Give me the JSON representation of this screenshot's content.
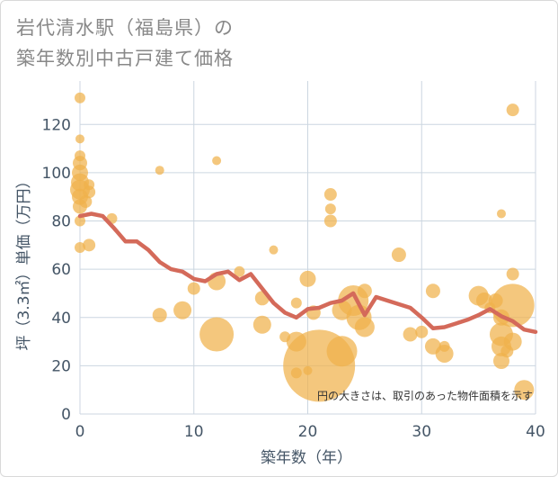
{
  "title_line1": "岩代清水駅（福島県）の",
  "title_line2": "築年数別中古戸建て価格",
  "colors": {
    "bubble": "#f0b24b",
    "line": "#d46a5a",
    "grid": "#ccd6e0",
    "text": "#445566"
  },
  "chart_data": {
    "type": "scatter",
    "title": "岩代清水駅（福島県）の築年数別中古戸建て価格",
    "xlabel": "築年数（年）",
    "ylabel": "坪（3.3㎡）単価（万円）",
    "xlim": [
      0,
      40
    ],
    "ylim": [
      0,
      138
    ],
    "xticks": [
      0,
      10,
      20,
      30,
      40
    ],
    "yticks": [
      0,
      20,
      40,
      60,
      80,
      100,
      120
    ],
    "grid": true,
    "note": "円の大きさは、取引のあった物件面積を示す",
    "bubbles": [
      {
        "x": 0,
        "y": 131,
        "s": 6
      },
      {
        "x": 0,
        "y": 114,
        "s": 5
      },
      {
        "x": 0,
        "y": 107,
        "s": 6
      },
      {
        "x": 0,
        "y": 104,
        "s": 8
      },
      {
        "x": 0,
        "y": 100,
        "s": 9
      },
      {
        "x": 0,
        "y": 96,
        "s": 10
      },
      {
        "x": 0,
        "y": 93,
        "s": 11
      },
      {
        "x": 0,
        "y": 90,
        "s": 9
      },
      {
        "x": 0,
        "y": 86,
        "s": 8
      },
      {
        "x": 0,
        "y": 80,
        "s": 6
      },
      {
        "x": 0,
        "y": 69,
        "s": 6
      },
      {
        "x": 0.5,
        "y": 88,
        "s": 7
      },
      {
        "x": 0.8,
        "y": 95,
        "s": 6
      },
      {
        "x": 0.8,
        "y": 92,
        "s": 7
      },
      {
        "x": 0.8,
        "y": 70,
        "s": 7
      },
      {
        "x": 2.8,
        "y": 81,
        "s": 6
      },
      {
        "x": 7,
        "y": 101,
        "s": 5
      },
      {
        "x": 7,
        "y": 41,
        "s": 8
      },
      {
        "x": 9,
        "y": 43,
        "s": 10
      },
      {
        "x": 10,
        "y": 52,
        "s": 7
      },
      {
        "x": 12,
        "y": 105,
        "s": 5
      },
      {
        "x": 12,
        "y": 55,
        "s": 10
      },
      {
        "x": 12,
        "y": 33,
        "s": 19
      },
      {
        "x": 14,
        "y": 59,
        "s": 6
      },
      {
        "x": 16,
        "y": 48,
        "s": 8
      },
      {
        "x": 16,
        "y": 37,
        "s": 10
      },
      {
        "x": 17,
        "y": 68,
        "s": 5
      },
      {
        "x": 18,
        "y": 32,
        "s": 6
      },
      {
        "x": 19,
        "y": 46,
        "s": 6
      },
      {
        "x": 19,
        "y": 30,
        "s": 11
      },
      {
        "x": 19,
        "y": 17,
        "s": 6
      },
      {
        "x": 20,
        "y": 56,
        "s": 9
      },
      {
        "x": 20,
        "y": 18,
        "s": 5
      },
      {
        "x": 20.5,
        "y": 42,
        "s": 8
      },
      {
        "x": 21,
        "y": 20,
        "s": 40
      },
      {
        "x": 22,
        "y": 91,
        "s": 7
      },
      {
        "x": 22,
        "y": 85,
        "s": 6
      },
      {
        "x": 22,
        "y": 80,
        "s": 7
      },
      {
        "x": 23,
        "y": 43,
        "s": 11
      },
      {
        "x": 23,
        "y": 26,
        "s": 17
      },
      {
        "x": 24,
        "y": 47,
        "s": 17
      },
      {
        "x": 24.5,
        "y": 40,
        "s": 14
      },
      {
        "x": 25,
        "y": 51,
        "s": 8
      },
      {
        "x": 25,
        "y": 36,
        "s": 11
      },
      {
        "x": 28,
        "y": 66,
        "s": 8
      },
      {
        "x": 29,
        "y": 33,
        "s": 8
      },
      {
        "x": 30,
        "y": 34,
        "s": 7
      },
      {
        "x": 31,
        "y": 51,
        "s": 8
      },
      {
        "x": 31,
        "y": 28,
        "s": 9
      },
      {
        "x": 32,
        "y": 28,
        "s": 6
      },
      {
        "x": 32,
        "y": 25,
        "s": 10
      },
      {
        "x": 35,
        "y": 49,
        "s": 11
      },
      {
        "x": 35.5,
        "y": 47,
        "s": 9
      },
      {
        "x": 36,
        "y": 44,
        "s": 6
      },
      {
        "x": 36.5,
        "y": 47,
        "s": 8
      },
      {
        "x": 37,
        "y": 83,
        "s": 5
      },
      {
        "x": 37,
        "y": 40,
        "s": 9
      },
      {
        "x": 37,
        "y": 33,
        "s": 13
      },
      {
        "x": 37,
        "y": 28,
        "s": 11
      },
      {
        "x": 37,
        "y": 22,
        "s": 9
      },
      {
        "x": 37.5,
        "y": 26,
        "s": 7
      },
      {
        "x": 38,
        "y": 126,
        "s": 7
      },
      {
        "x": 38,
        "y": 58,
        "s": 7
      },
      {
        "x": 38,
        "y": 30,
        "s": 10
      },
      {
        "x": 38,
        "y": 45,
        "s": 24
      },
      {
        "x": 39,
        "y": 10,
        "s": 11
      }
    ],
    "series": [
      {
        "x": [
          0,
          1,
          2,
          3,
          4,
          5,
          6,
          7,
          8,
          9,
          10,
          11,
          12,
          13,
          14,
          15,
          16,
          17,
          18,
          19,
          20,
          21,
          22,
          23,
          24,
          25,
          26,
          27,
          28,
          29,
          30,
          31,
          32,
          33,
          34,
          35,
          36,
          37,
          38,
          39,
          40
        ],
        "y": [
          82,
          83,
          82,
          77,
          71.5,
          71.5,
          68,
          63,
          60,
          59,
          56,
          55,
          58,
          59,
          55.5,
          58,
          52,
          46,
          42,
          40,
          43.5,
          44,
          46,
          47,
          50,
          41,
          48.5,
          47,
          45.5,
          44,
          40,
          35.5,
          36,
          37.5,
          39,
          41,
          43.5,
          40.5,
          38.5,
          35,
          34
        ]
      }
    ]
  }
}
